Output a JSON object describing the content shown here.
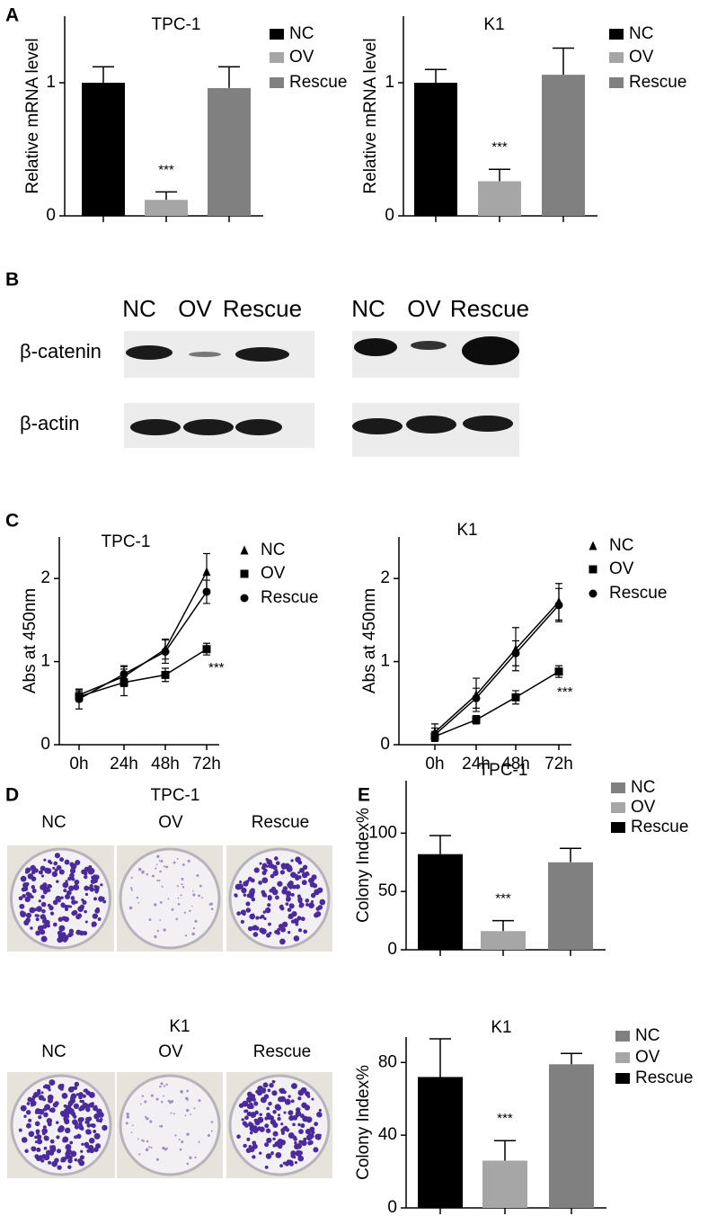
{
  "panel_labels": [
    "A",
    "B",
    "C",
    "D",
    "E"
  ],
  "blot": {
    "lanes": [
      "NC",
      "OV",
      "Rescue"
    ],
    "rows": [
      "β-catenin",
      "β-actin"
    ]
  },
  "colony": {
    "title_top": "TPC-1",
    "title_bottom": "K1",
    "lanes": [
      "NC",
      "OV",
      "Rescue"
    ]
  },
  "chart_data": [
    {
      "type": "bar",
      "title": "TPC-1",
      "y_label": "Relative mRNA level",
      "categories": [
        "NC",
        "OV",
        "Rescue"
      ],
      "values": [
        1,
        0.12,
        0.96
      ],
      "errors": [
        0.12,
        0.06,
        0.16
      ],
      "colors": [
        "#000000",
        "#a6a6a6",
        "#808080"
      ],
      "legend_colors": [
        "#000000",
        "#a6a6a6",
        "#808080"
      ],
      "ylim": [
        0,
        1.5
      ],
      "yticks": [
        0,
        1
      ],
      "annotation": "***"
    },
    {
      "type": "bar",
      "title": "K1",
      "y_label": "Relative mRNA level",
      "categories": [
        "NC",
        "OV",
        "Rescue"
      ],
      "values": [
        1,
        0.26,
        1.06
      ],
      "errors": [
        0.1,
        0.09,
        0.2
      ],
      "colors": [
        "#000000",
        "#a6a6a6",
        "#808080"
      ],
      "legend_colors": [
        "#000000",
        "#a6a6a6",
        "#808080"
      ],
      "ylim": [
        0,
        1.5
      ],
      "yticks": [
        0,
        1
      ],
      "annotation": "***"
    },
    {
      "type": "line",
      "title": "TPC-1",
      "y_label": "Abs at 450nm",
      "categories": [
        "0h",
        "24h",
        "48h",
        "72h"
      ],
      "series": [
        {
          "name": "NC",
          "marker": "triangle",
          "color": "#000000",
          "values": [
            0.6,
            0.82,
            1.15,
            2.08
          ],
          "errors": [
            0.06,
            0.12,
            0.12,
            0.22
          ]
        },
        {
          "name": "OV",
          "marker": "square",
          "color": "#000000",
          "values": [
            0.58,
            0.75,
            0.84,
            1.15
          ],
          "errors": [
            0.06,
            0.16,
            0.08,
            0.07
          ]
        },
        {
          "name": "Rescue",
          "marker": "circle",
          "color": "#000000",
          "values": [
            0.55,
            0.85,
            1.12,
            1.84
          ],
          "errors": [
            0.12,
            0.1,
            0.14,
            0.14
          ]
        }
      ],
      "ylim": [
        0,
        2.5
      ],
      "yticks": [
        0,
        1,
        2
      ],
      "annotation": "***"
    },
    {
      "type": "line",
      "title": "K1",
      "y_label": "Abs at 450nm",
      "categories": [
        "0h",
        "24h",
        "48h",
        "72h"
      ],
      "series": [
        {
          "name": "NC",
          "marker": "triangle",
          "color": "#000000",
          "values": [
            0.15,
            0.6,
            1.15,
            1.72
          ],
          "errors": [
            0.1,
            0.2,
            0.26,
            0.22
          ]
        },
        {
          "name": "OV",
          "marker": "square",
          "color": "#000000",
          "values": [
            0.1,
            0.3,
            0.57,
            0.88
          ],
          "errors": [
            0.06,
            0.05,
            0.08,
            0.07
          ]
        },
        {
          "name": "Rescue",
          "marker": "circle",
          "color": "#000000",
          "values": [
            0.12,
            0.56,
            1.1,
            1.68
          ],
          "errors": [
            0.08,
            0.12,
            0.15,
            0.2
          ]
        }
      ],
      "ylim": [
        0,
        2.5
      ],
      "yticks": [
        0,
        1,
        2
      ],
      "annotation": "***"
    },
    {
      "type": "bar",
      "title": "TPC-1",
      "y_label": "Colony Index%",
      "categories": [
        "NC",
        "OV",
        "Rescue"
      ],
      "values": [
        82,
        16,
        75
      ],
      "errors": [
        16,
        9,
        12
      ],
      "colors": [
        "#000000",
        "#a6a6a6",
        "#808080"
      ],
      "legend_colors": [
        "#808080",
        "#a6a6a6",
        "#000000"
      ],
      "ylim": [
        0,
        145
      ],
      "yticks": [
        0,
        50,
        100
      ],
      "annotation": "***"
    },
    {
      "type": "bar",
      "title": "K1",
      "y_label": "Colony Index%",
      "categories": [
        "NC",
        "OV",
        "Rescue"
      ],
      "values": [
        72,
        26,
        79
      ],
      "errors": [
        21,
        11,
        6
      ],
      "colors": [
        "#000000",
        "#a6a6a6",
        "#808080"
      ],
      "legend_colors": [
        "#808080",
        "#a6a6a6",
        "#000000"
      ],
      "ylim": [
        0,
        94
      ],
      "yticks": [
        0,
        40,
        80
      ],
      "annotation": "***"
    }
  ]
}
